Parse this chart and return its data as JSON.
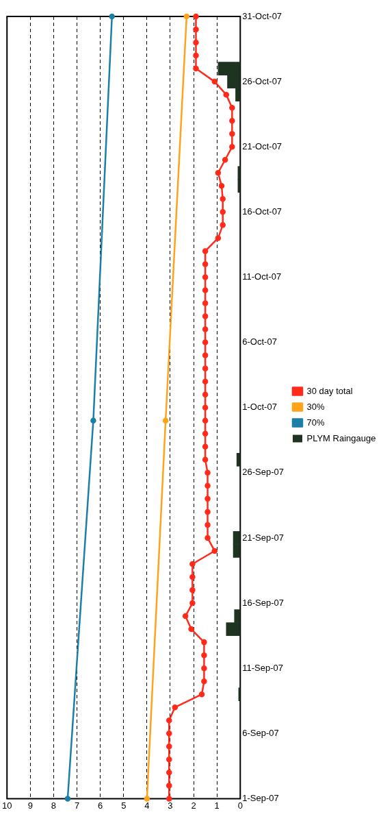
{
  "chart_data": {
    "type": "line",
    "orientation": "horizontal",
    "ylim": [
      "--09-01",
      "--10-31"
    ],
    "yticks": [
      {
        "value": "--09-01",
        "label": "1-Sep-07"
      },
      {
        "value": "--09-06",
        "label": "6-Sep-07"
      },
      {
        "value": "--09-11",
        "label": "11-Sep-07"
      },
      {
        "value": "--09-16",
        "label": "16-Sep-07"
      },
      {
        "value": "--09-21",
        "label": "21-Sep-07"
      },
      {
        "value": "--09-26",
        "label": "26-Sep-07"
      },
      {
        "value": "--10-01",
        "label": "1-Oct-07"
      },
      {
        "value": "--10-06",
        "label": "6-Oct-07"
      },
      {
        "value": "--10-11",
        "label": "11-Oct-07"
      },
      {
        "value": "--10-16",
        "label": "16-Oct-07"
      },
      {
        "value": "--10-21",
        "label": "21-Oct-07"
      },
      {
        "value": "--10-26",
        "label": "26-Oct-07"
      },
      {
        "value": "--10-31",
        "label": "31-Oct-07"
      }
    ],
    "xlim": [
      10,
      0
    ],
    "xticks": [
      10,
      9,
      8,
      7,
      6,
      5,
      4,
      3,
      2,
      1,
      0
    ],
    "grid": "x",
    "legend": "right",
    "marker": "circle",
    "line_style": "solid",
    "series": [
      {
        "name": "PLYM Raingauge",
        "type": "bar",
        "color": "#1e3320",
        "x": [
          "--09-09",
          "--09-14",
          "--09-15",
          "--09-20",
          "--09-21",
          "--09-27",
          "--10-18",
          "--10-19",
          "--10-25",
          "--10-26",
          "--10-27"
        ],
        "values": [
          0.07,
          0.6,
          0.25,
          0.3,
          0.3,
          0.15,
          0.1,
          0.1,
          0.2,
          0.55,
          0.95
        ]
      },
      {
        "name": "30 day total",
        "color": "#ff2a1a",
        "x": [
          "--09-01",
          "--09-02",
          "--09-03",
          "--09-04",
          "--09-05",
          "--09-06",
          "--09-07",
          "--09-08",
          "--09-09",
          "--09-10",
          "--09-11",
          "--09-12",
          "--09-13",
          "--09-14",
          "--09-15",
          "--09-16",
          "--09-17",
          "--09-18",
          "--09-19",
          "--09-20",
          "--09-21",
          "--09-22",
          "--09-23",
          "--09-24",
          "--09-25",
          "--09-26",
          "--09-27",
          "--09-28",
          "--09-29",
          "--09-30",
          "--10-01",
          "--10-02",
          "--10-03",
          "--10-04",
          "--10-05",
          "--10-06",
          "--10-07",
          "--10-08",
          "--10-09",
          "--10-10",
          "--10-11",
          "--10-12",
          "--10-13",
          "--10-14",
          "--10-15",
          "--10-16",
          "--10-17",
          "--10-18",
          "--10-19",
          "--10-20",
          "--10-21",
          "--10-22",
          "--10-23",
          "--10-24",
          "--10-25",
          "--10-26",
          "--10-27",
          "--10-28",
          "--10-29",
          "--10-30",
          "--10-31"
        ],
        "values": [
          3.05,
          3.05,
          3.05,
          3.05,
          3.05,
          3.05,
          3.05,
          2.8,
          1.65,
          1.55,
          1.55,
          1.55,
          1.55,
          2.1,
          2.35,
          2.05,
          2.05,
          2.05,
          2.05,
          1.1,
          1.4,
          1.4,
          1.4,
          1.4,
          1.4,
          1.4,
          1.5,
          1.5,
          1.5,
          1.5,
          1.5,
          1.5,
          1.5,
          1.5,
          1.5,
          1.5,
          1.5,
          1.5,
          1.5,
          1.5,
          1.5,
          1.5,
          1.5,
          0.95,
          0.75,
          0.75,
          0.75,
          0.8,
          0.95,
          0.65,
          0.35,
          0.35,
          0.35,
          0.35,
          0.6,
          1.1,
          1.9,
          1.9,
          1.9,
          1.9,
          1.9
        ]
      },
      {
        "name": "30%",
        "color": "#ffa31a",
        "x": [
          "--09-01",
          "--09-30",
          "--10-31"
        ],
        "values": [
          4,
          3.2,
          2.3
        ]
      },
      {
        "name": "70%",
        "color": "#1b7fa6",
        "x": [
          "--09-01",
          "--09-30",
          "--10-31"
        ],
        "values": [
          7.4,
          6.3,
          5.5
        ]
      }
    ]
  }
}
